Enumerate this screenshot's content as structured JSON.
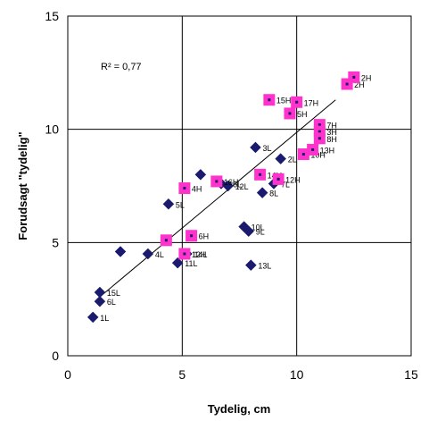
{
  "chart_data": {
    "type": "scatter",
    "xlabel": "Tydelig, cm",
    "ylabel": "Forudsagt \"tydelig\"",
    "xlim": [
      0,
      15
    ],
    "ylim": [
      0,
      15
    ],
    "xticks": [
      "0",
      "5",
      "10",
      "15"
    ],
    "yticks": [
      "0",
      "5",
      "10",
      "15"
    ],
    "grid": true,
    "annotation": "R² = 0,77",
    "marker_colors": {
      "L": "#1a1a6e",
      "H": "#ff33cc"
    },
    "trendline": {
      "x": [
        1.4,
        11.7
      ],
      "y": [
        2.6,
        11.3
      ]
    },
    "series": [
      {
        "marker": "diamond",
        "color": "#1a1a6e",
        "points": [
          {
            "x": 1.1,
            "y": 1.7,
            "label": "1L"
          },
          {
            "x": 1.4,
            "y": 2.4,
            "label": "6L"
          },
          {
            "x": 1.4,
            "y": 2.8,
            "label": "15L"
          },
          {
            "x": 2.3,
            "y": 4.6,
            "label": ""
          },
          {
            "x": 3.5,
            "y": 4.5,
            "label": "4L"
          },
          {
            "x": 4.8,
            "y": 4.1,
            "label": "11L"
          },
          {
            "x": 5.2,
            "y": 4.5,
            "label": "14L"
          },
          {
            "x": 4.4,
            "y": 6.7,
            "label": "5L"
          },
          {
            "x": 5.8,
            "y": 8.0,
            "label": ""
          },
          {
            "x": 6.7,
            "y": 7.6,
            "label": "16L"
          },
          {
            "x": 7.0,
            "y": 7.5,
            "label": "12L"
          },
          {
            "x": 7.7,
            "y": 5.7,
            "label": "10L"
          },
          {
            "x": 7.9,
            "y": 5.5,
            "label": "9L"
          },
          {
            "x": 8.0,
            "y": 4.0,
            "label": "13L"
          },
          {
            "x": 8.2,
            "y": 9.2,
            "label": "3L"
          },
          {
            "x": 8.5,
            "y": 7.2,
            "label": "8L"
          },
          {
            "x": 9.0,
            "y": 7.6,
            "label": "7L"
          },
          {
            "x": 9.3,
            "y": 8.7,
            "label": "2L"
          }
        ]
      },
      {
        "marker": "square",
        "color": "#ff33cc",
        "points": [
          {
            "x": 4.3,
            "y": 5.1,
            "label": ""
          },
          {
            "x": 5.1,
            "y": 4.5,
            "label": "12H"
          },
          {
            "x": 5.4,
            "y": 5.3,
            "label": "6H"
          },
          {
            "x": 5.1,
            "y": 7.4,
            "label": "4H"
          },
          {
            "x": 6.5,
            "y": 7.7,
            "label": "16H"
          },
          {
            "x": 8.4,
            "y": 8.0,
            "label": "14H"
          },
          {
            "x": 9.2,
            "y": 7.8,
            "label": "12H"
          },
          {
            "x": 8.8,
            "y": 11.3,
            "label": "15H"
          },
          {
            "x": 9.7,
            "y": 10.7,
            "label": "5H"
          },
          {
            "x": 10.0,
            "y": 11.2,
            "label": "17H"
          },
          {
            "x": 10.3,
            "y": 8.9,
            "label": "10H"
          },
          {
            "x": 10.7,
            "y": 9.1,
            "label": "13H"
          },
          {
            "x": 11.0,
            "y": 10.2,
            "label": "7H"
          },
          {
            "x": 11.0,
            "y": 9.9,
            "label": "3H"
          },
          {
            "x": 11.0,
            "y": 9.6,
            "label": "8H"
          },
          {
            "x": 12.2,
            "y": 12.0,
            "label": "2H"
          },
          {
            "x": 12.5,
            "y": 12.3,
            "label": "2H"
          }
        ]
      }
    ]
  }
}
